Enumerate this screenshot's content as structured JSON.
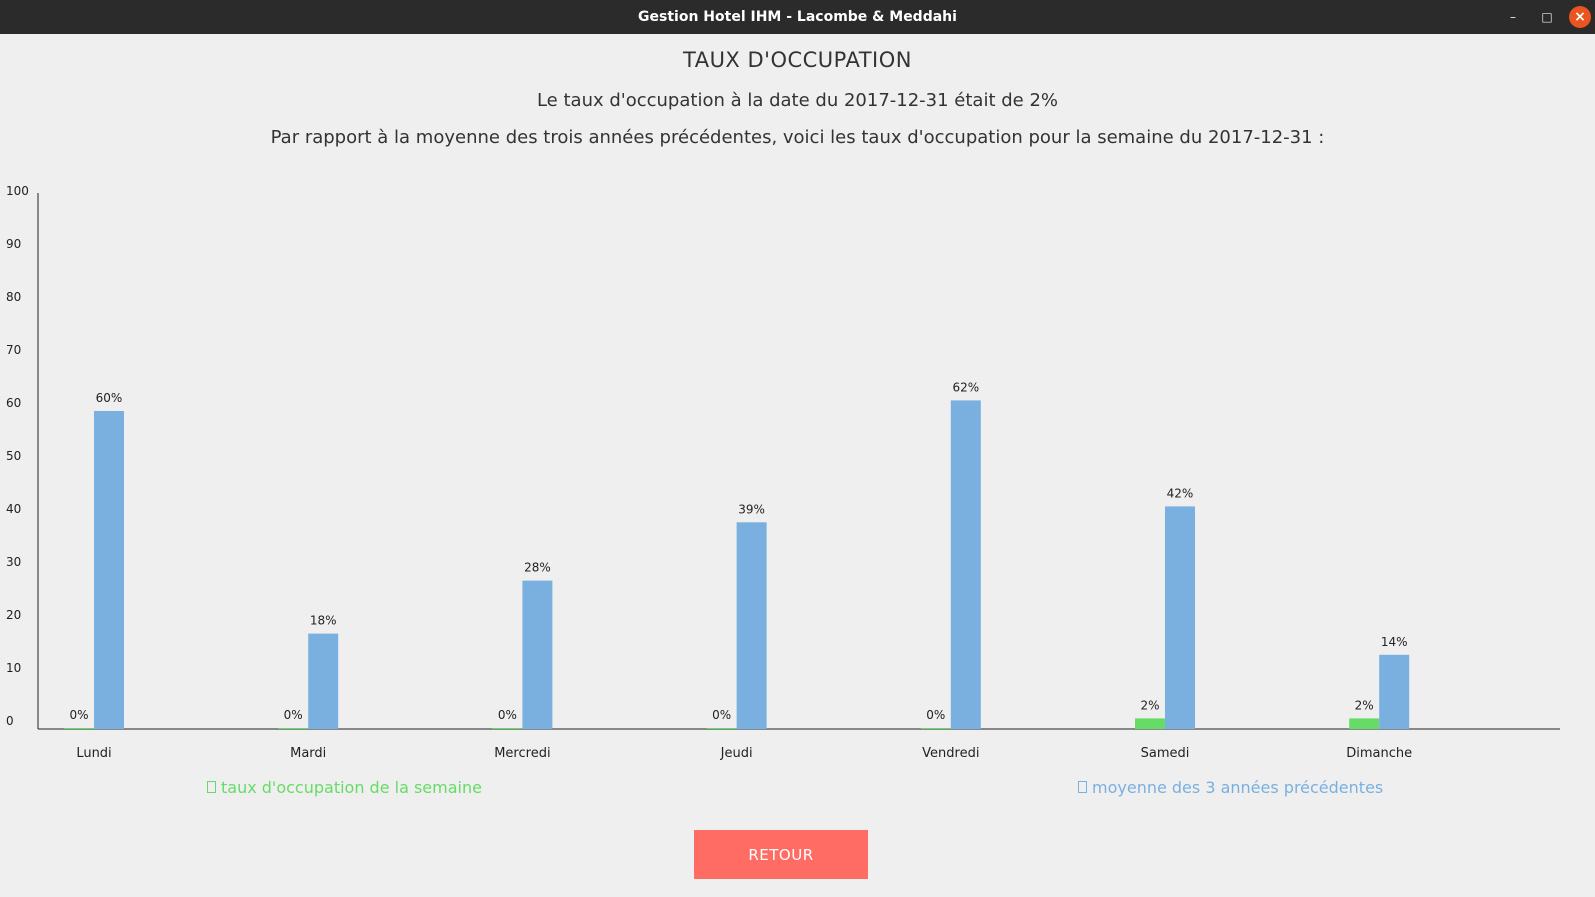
{
  "window": {
    "title": "Gestion Hotel IHM - Lacombe & Meddahi",
    "minimize_label": "–",
    "maximize_label": "□",
    "close_label": "×"
  },
  "page": {
    "heading": "TAUX D'OCCUPATION",
    "subheading": "Le taux d'occupation à la date du 2017-12-31 était de 2%",
    "description": "Par rapport à la moyenne des trois années précédentes, voici les taux d'occupation pour la semaine du 2017-12-31 :"
  },
  "colors": {
    "week": "#66dc66",
    "average": "#79b0e0",
    "button": "#ff6c64"
  },
  "chart_data": {
    "type": "bar",
    "categories": [
      "Lundi",
      "Mardi",
      "Mercredi",
      "Jeudi",
      "Vendredi",
      "Samedi",
      "Dimanche"
    ],
    "series": [
      {
        "name": "taux d'occupation de la semaine",
        "values": [
          0,
          0,
          0,
          0,
          0,
          2,
          2
        ],
        "labels": [
          "0%",
          "0%",
          "0%",
          "0%",
          "0%",
          "2%",
          "2%"
        ]
      },
      {
        "name": "moyenne des 3 années précédentes",
        "values": [
          60,
          18,
          28,
          39,
          62,
          42,
          14
        ],
        "labels": [
          "60%",
          "18%",
          "28%",
          "39%",
          "62%",
          "42%",
          "14%"
        ]
      }
    ],
    "yticks": [
      0,
      10,
      20,
      30,
      40,
      50,
      60,
      70,
      80,
      90,
      100
    ],
    "ylim": [
      0,
      100
    ],
    "grid": false,
    "legend_position": "bottom"
  },
  "legend": {
    "week_label": "taux d'occupation de la semaine",
    "average_label": "moyenne des 3 années précédentes"
  },
  "buttons": {
    "retour": "RETOUR"
  }
}
